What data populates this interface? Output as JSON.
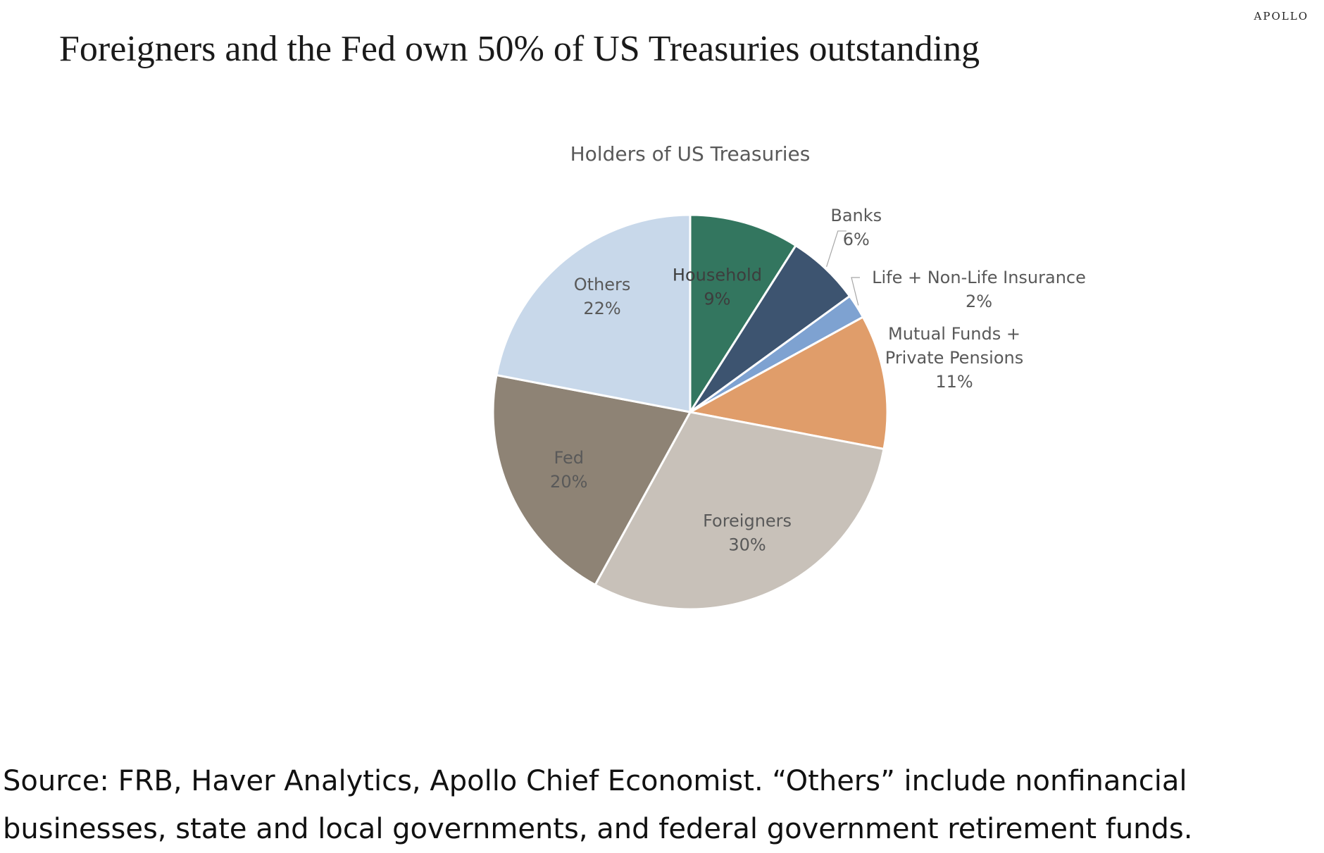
{
  "brand": "APOLLO",
  "headline": "Foreigners and the Fed own 50% of US Treasuries outstanding",
  "source_lines": [
    "Source: FRB, Haver Analytics, Apollo Chief Economist. “Others” include nonfinancial",
    "businesses, state and local governments, and federal government retirement funds."
  ],
  "chart_data": {
    "type": "pie",
    "title": "Holders of US Treasuries",
    "start_angle_deg": 0,
    "direction": "clockwise",
    "slices": [
      {
        "name": "Household",
        "value": 9,
        "label_lines": [
          "Household",
          "9%"
        ],
        "color": "#33765f"
      },
      {
        "name": "Banks",
        "value": 6,
        "label_lines": [
          "Banks",
          "6%"
        ],
        "color": "#3d5470"
      },
      {
        "name": "Life + Non-Life Insurance",
        "value": 2,
        "label_lines": [
          "Life + Non-Life Insurance",
          "2%"
        ],
        "color": "#7ea2d1"
      },
      {
        "name": "Mutual Funds + Private Pensions",
        "value": 11,
        "label_lines": [
          "Mutual Funds +",
          "Private Pensions",
          "11%"
        ],
        "color": "#e09d6a"
      },
      {
        "name": "Foreigners",
        "value": 30,
        "label_lines": [
          "Foreigners",
          "30%"
        ],
        "color": "#c8c1b9"
      },
      {
        "name": "Fed",
        "value": 20,
        "label_lines": [
          "Fed",
          "20%"
        ],
        "color": "#8e8375"
      },
      {
        "name": "Others",
        "value": 22,
        "label_lines": [
          "Others",
          "22%"
        ],
        "color": "#c8d8ea"
      }
    ]
  }
}
